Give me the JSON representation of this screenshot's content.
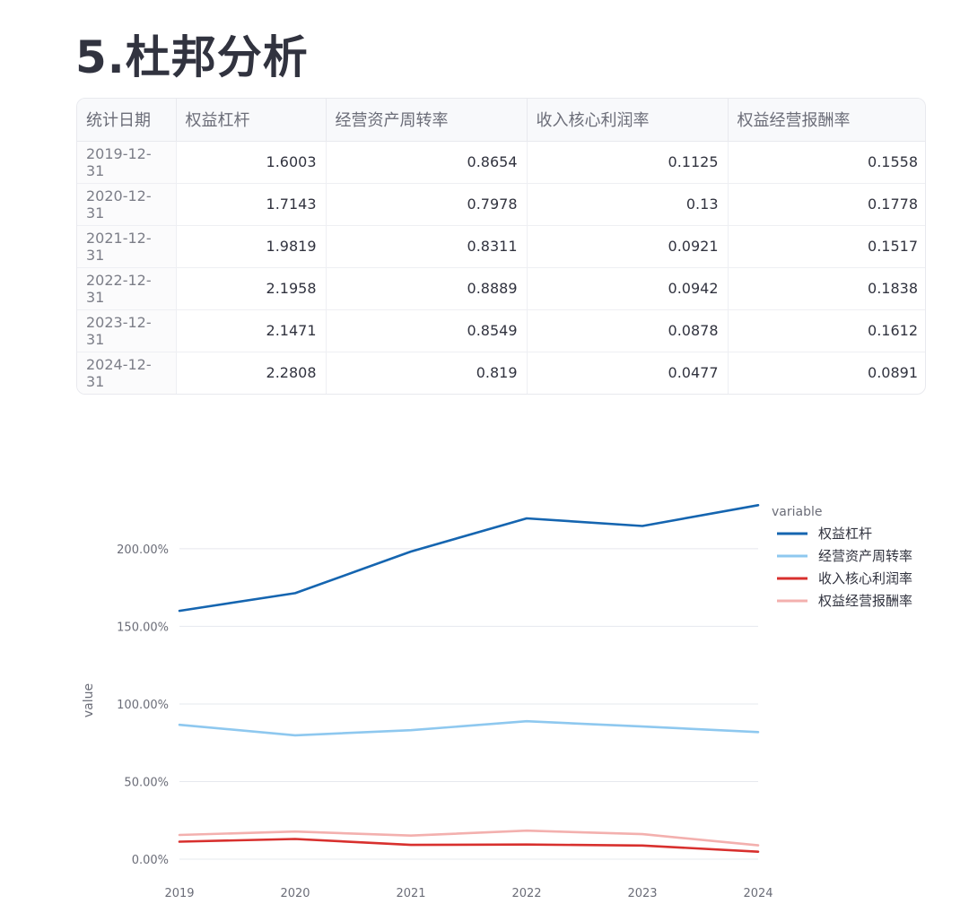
{
  "page": {
    "title": "5.杜邦分析"
  },
  "table": {
    "columns": [
      "统计日期",
      "权益杠杆",
      "经营资产周转率",
      "收入核心利润率",
      "权益经营报酬率"
    ],
    "rows": [
      [
        "2019-12-31",
        "1.6003",
        "0.8654",
        "0.1125",
        "0.1558"
      ],
      [
        "2020-12-31",
        "1.7143",
        "0.7978",
        "0.13",
        "0.1778"
      ],
      [
        "2021-12-31",
        "1.9819",
        "0.8311",
        "0.0921",
        "0.1517"
      ],
      [
        "2022-12-31",
        "2.1958",
        "0.8889",
        "0.0942",
        "0.1838"
      ],
      [
        "2023-12-31",
        "2.1471",
        "0.8549",
        "0.0878",
        "0.1612"
      ],
      [
        "2024-12-31",
        "2.2808",
        "0.819",
        "0.0477",
        "0.0891"
      ]
    ]
  },
  "chart_data": {
    "type": "line",
    "x": [
      "2019",
      "2020",
      "2021",
      "2022",
      "2023",
      "2024"
    ],
    "ylabel": "value",
    "xlabel": "",
    "ylim": [
      0,
      2.3
    ],
    "y_ticks": [
      0,
      0.5,
      1.0,
      1.5,
      2.0
    ],
    "y_tick_labels": [
      "0.00%",
      "50.00%",
      "100.00%",
      "150.00%",
      "200.00%"
    ],
    "y_format": "percent",
    "grid": "horizontal",
    "legend": {
      "title": "variable",
      "placement": "top-right"
    },
    "series": [
      {
        "name": "权益杠杆",
        "color": "#1565b0",
        "values": [
          1.6003,
          1.7143,
          1.9819,
          2.1958,
          2.1471,
          2.2808
        ]
      },
      {
        "name": "经营资产周转率",
        "color": "#8ec8ef",
        "values": [
          0.8654,
          0.7978,
          0.8311,
          0.8889,
          0.8549,
          0.819
        ]
      },
      {
        "name": "收入核心利润率",
        "color": "#d8302e",
        "values": [
          0.1125,
          0.13,
          0.0921,
          0.0942,
          0.0878,
          0.0477
        ]
      },
      {
        "name": "权益经营报酬率",
        "color": "#f3b0ae",
        "values": [
          0.1558,
          0.1778,
          0.1517,
          0.1838,
          0.1612,
          0.0891
        ]
      }
    ]
  }
}
